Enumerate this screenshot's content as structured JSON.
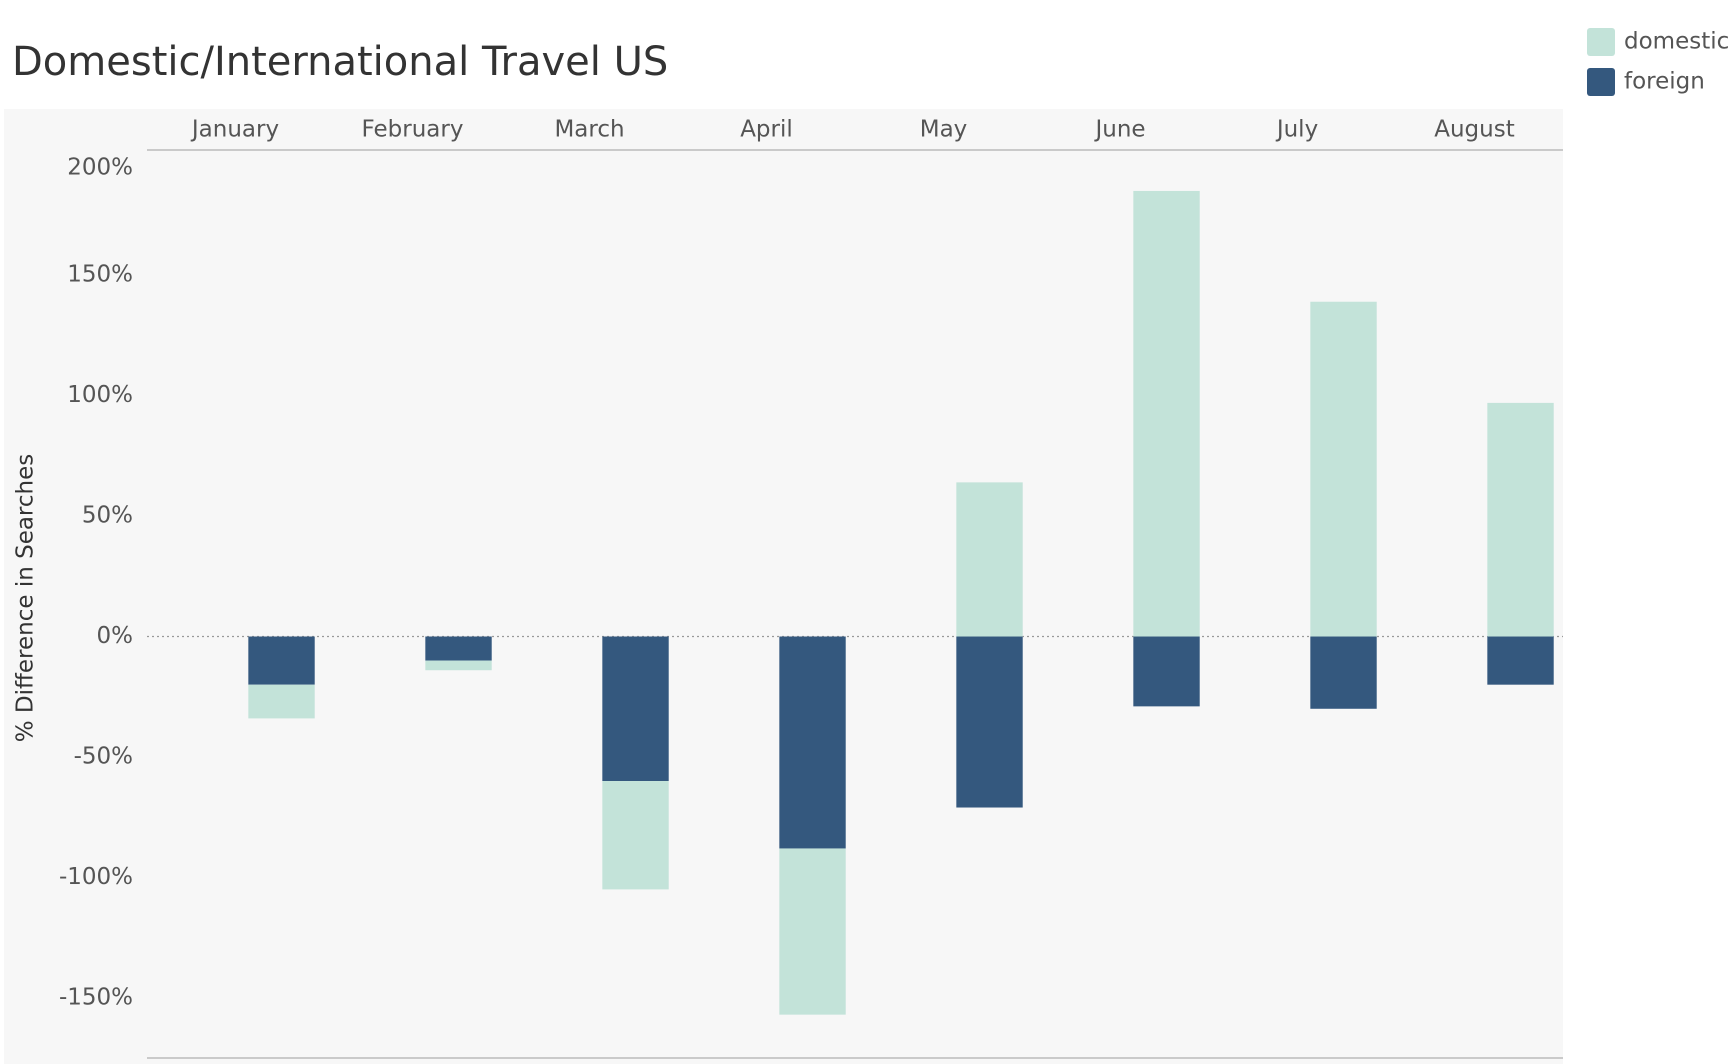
{
  "chart_data": {
    "type": "bar",
    "stacked": true,
    "title": "Domestic/International Travel US",
    "y_label": "% Difference in Searches",
    "categories": [
      "January",
      "February",
      "March",
      "April",
      "May",
      "June",
      "July",
      "August"
    ],
    "series": [
      {
        "name": "domestic",
        "color": "#c3e3d9",
        "values": [
          -14,
          -4,
          -45,
          -69,
          64,
          185,
          139,
          97
        ]
      },
      {
        "name": "foreign",
        "color": "#34587e",
        "values": [
          -20,
          -10,
          -60,
          -88,
          -71,
          -29,
          -30,
          -20
        ]
      }
    ],
    "ylim": [
      -175,
      202
    ],
    "yticks": [
      {
        "value": -150,
        "label": "-150%"
      },
      {
        "value": -100,
        "label": "-100%"
      },
      {
        "value": -50,
        "label": "-50%"
      },
      {
        "value": 0,
        "label": "0%"
      },
      {
        "value": 50,
        "label": "50%"
      },
      {
        "value": 100,
        "label": "100%"
      },
      {
        "value": 150,
        "label": "150%"
      },
      {
        "value": 200,
        "label": "200%"
      }
    ],
    "zero_line": true,
    "legend": "top-right"
  }
}
